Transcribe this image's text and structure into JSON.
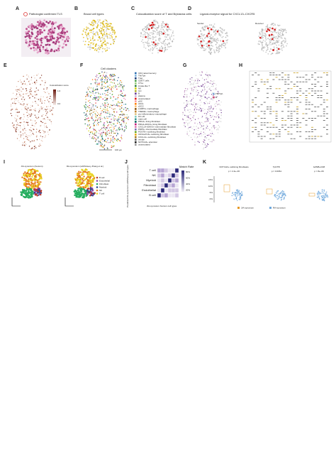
{
  "panels": {
    "a": {
      "label": "A",
      "title": "Pathologist confirmed TLS"
    },
    "b": {
      "label": "B",
      "title": "Broad cell types"
    },
    "c": {
      "label": "C",
      "title": "Colocalization score of T and B/plasma cells"
    },
    "d": {
      "label": "D",
      "title": "Ligand-receptor signal for CXCL13–CXCR5",
      "sender": "Sender",
      "receiver": "Receiver"
    },
    "e": {
      "label": "E",
      "legend_title": "Colocalization score",
      "legend_max": "1.0",
      "legend_min": "0.0"
    },
    "f": {
      "label": "F",
      "title": "Cell clusters",
      "scale": "100 μm",
      "clusters": [
        "CD4 naive/memory",
        "Tfh/Tph",
        "Treg",
        "CD8 T cells",
        "CTLs",
        "innate-like T",
        "NK",
        "ILC",
        "B",
        "plasma",
        "unannotated",
        "pDC",
        "cDC1",
        "cDC2",
        "LAMP3+ macrophage",
        "TREM2+ macrophage",
        "pro-inflammatory macrophage",
        "DC-LB",
        "mast cell",
        "PRG4+ lining fibroblast",
        "PRG4+DKK3+ lining fibroblast",
        "CXCL14+DKK3+ intermediate fibroblast",
        "PDPN+ intermediate fibroblast",
        "POSTN+ sublining fibroblast",
        "CD34+PI16+ sublining fibroblast",
        "CXCL12+ sublining fibroblast",
        "venule",
        "NOTCH3+ arteriolar",
        "unannotated"
      ]
    },
    "g": {
      "label": "G",
      "legend": [
        "Tfh/Tph",
        "B"
      ]
    },
    "h": {
      "label": "H"
    },
    "i": {
      "label": "I",
      "titles": [
        "JIA-synovium (Xenium)",
        "RA-synovium (scRNAseq, Zhang et al.)"
      ],
      "legend": [
        "B cell",
        "Endothelial",
        "Fibroblast",
        "Myeloid",
        "NK",
        "T cell"
      ]
    },
    "j": {
      "label": "J",
      "legend_title": "Match Rate",
      "legend_ticks": [
        "80%",
        "60%",
        "40%",
        "20%"
      ],
      "rows": [
        "T cell",
        "NK",
        "Myeloid",
        "Fibroblast",
        "Endothelial",
        "B cell"
      ],
      "y_label": "Predicted RA-synovium scRNAseq cell types",
      "x_label": "JIA-synovium Xenium cell types"
    },
    "k": {
      "label": "K",
      "plots": [
        {
          "title": "NOTCH3+ sublining fibroblasts",
          "p": "p = 2.4e−06"
        },
        {
          "title": "Tph/Tfh",
          "p": "p = 0.0061"
        },
        {
          "title": "GZMB+CD8",
          "p": "p = 8e−06"
        }
      ],
      "y_ticks": [
        "15%",
        "10%",
        "5%",
        "0%"
      ],
      "legend": [
        "JIA-synovium",
        "RA-synovium"
      ]
    }
  }
}
